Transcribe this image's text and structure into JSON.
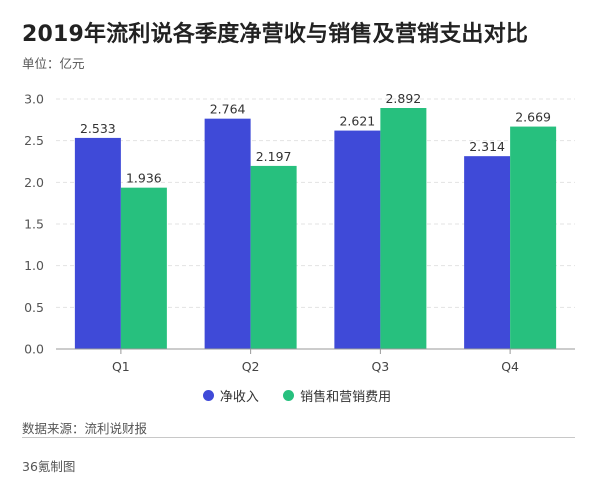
{
  "title": "2019年流利说各季度净营收与销售及营销支出对比",
  "unit": "单位：亿元",
  "source": "数据来源：流利说财报",
  "credit": "36氪制图",
  "colors": {
    "series1": "#3f4ad8",
    "series2": "#27c07e",
    "grid": "#e3e3e3",
    "axis": "#999999"
  },
  "chart_data": {
    "type": "bar",
    "categories": [
      "Q1",
      "Q2",
      "Q3",
      "Q4"
    ],
    "series": [
      {
        "name": "净收入",
        "values": [
          2.533,
          2.764,
          2.621,
          2.314
        ]
      },
      {
        "name": "销售和营销费用",
        "values": [
          1.936,
          2.197,
          2.892,
          2.669
        ]
      }
    ],
    "value_labels": [
      [
        "2.533",
        "2.764",
        "2.621",
        "2.314"
      ],
      [
        "1.936",
        "2.197",
        "2.892",
        "2.669"
      ]
    ],
    "ylim": [
      0,
      3.0
    ],
    "yticks": [
      "0.0",
      "0.5",
      "1.0",
      "1.5",
      "2.0",
      "2.5",
      "3.0"
    ],
    "ytick_values": [
      0,
      0.5,
      1.0,
      1.5,
      2.0,
      2.5,
      3.0
    ],
    "grid": true,
    "legend_position": "bottom"
  }
}
